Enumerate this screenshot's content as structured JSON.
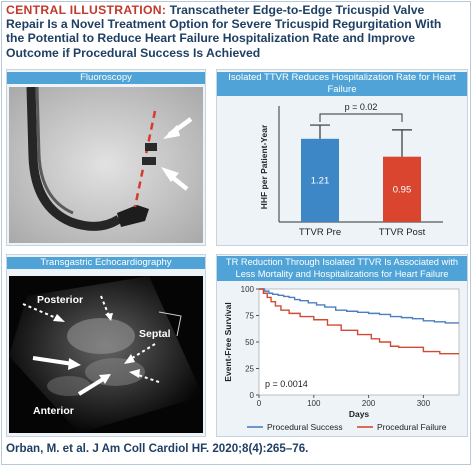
{
  "header": {
    "label": "CENTRAL ILLUSTRATION:",
    "title_lines": [
      "Transcatheter Edge-to-Edge Tricuspid Valve",
      "Repair Is a Novel Treatment Option for Severe Tricuspid Regurgitation With",
      "the Potential to Reduce Heart Failure Hospitalization Rate and Improve",
      "Outcome if Procedural Success Is Achieved"
    ]
  },
  "panels": {
    "fluoroscopy": {
      "title": "Fluoroscopy"
    },
    "echo": {
      "title": "Transgastric Echocardiography",
      "labels": {
        "posterior": "Posterior",
        "septal": "Septal",
        "anterior": "Anterior"
      }
    },
    "hospitalization": {
      "title": "Isolated TTVR Reduces Hospitalization Rate for Heart Failure"
    },
    "survival": {
      "title_lines": [
        "TR Reduction Through Isolated TTVR Is Associated with",
        "Less Mortality and Hospitalizations for Heart Failure"
      ]
    }
  },
  "citation": "Orban, M. et al. J Am Coll Cardiol HF. 2020;8(4):265–76.",
  "chart_data": [
    {
      "type": "bar",
      "title": "Isolated TTVR Reduces Hospitalization Rate for Heart Failure",
      "ylabel": "HHF per Patient-Year",
      "xlabel": "",
      "categories": [
        "TTVR Pre",
        "TTVR Post"
      ],
      "values": [
        1.21,
        0.95
      ],
      "value_labels": [
        "1.21",
        "0.95"
      ],
      "colors": [
        "#3e87c7",
        "#d9452e"
      ],
      "error_bars": [
        0.2,
        0.39
      ],
      "ylim": [
        0,
        1.6
      ],
      "annotation": "p = 0.02",
      "grid": false
    },
    {
      "type": "line",
      "title": "TR Reduction Through Isolated TTVR Is Associated with Less Mortality and Hospitalizations for Heart Failure",
      "xlabel": "Days",
      "ylabel": "Event-Free Survival",
      "xlim": [
        0,
        365
      ],
      "ylim": [
        0,
        100
      ],
      "xticks": [
        0,
        100,
        200,
        300
      ],
      "yticks": [
        0,
        25,
        50,
        75,
        100
      ],
      "annotation": "p = 0.0014",
      "legend_position": "bottom",
      "series": [
        {
          "name": "Procedural Success",
          "color": "#4a7fc1",
          "x": [
            0,
            10,
            18,
            25,
            35,
            45,
            55,
            65,
            75,
            90,
            105,
            120,
            140,
            160,
            180,
            200,
            220,
            240,
            260,
            280,
            300,
            320,
            340,
            365
          ],
          "y": [
            100,
            98,
            96,
            95,
            94,
            93,
            92,
            90,
            89,
            87,
            85,
            83,
            80,
            79,
            78,
            77,
            76,
            74,
            73,
            72,
            70,
            69,
            68,
            68
          ]
        },
        {
          "name": "Procedural Failure",
          "color": "#d04a36",
          "x": [
            0,
            8,
            15,
            22,
            30,
            40,
            55,
            75,
            100,
            125,
            150,
            180,
            205,
            220,
            240,
            255,
            270,
            300,
            330,
            365
          ],
          "y": [
            100,
            96,
            92,
            88,
            84,
            80,
            77,
            74,
            71,
            66,
            61,
            57,
            53,
            50,
            46,
            45,
            45,
            41,
            39,
            39
          ]
        }
      ]
    }
  ]
}
